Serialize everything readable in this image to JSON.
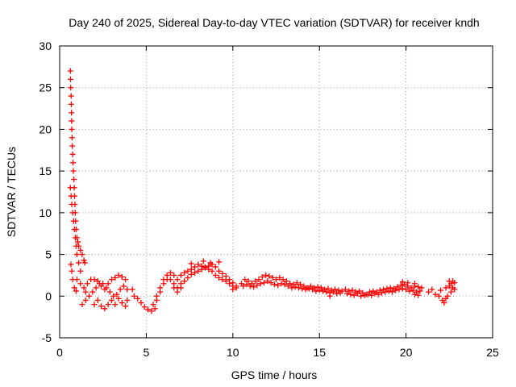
{
  "chart_data": {
    "type": "scatter",
    "title": "Day 240 of 2025, Sidereal Day-to-day VTEC variation (SDTVAR) for receiver kndh",
    "xlabel": "GPS time / hours",
    "ylabel": "SDTVAR / TECUs",
    "xlim": [
      0,
      25
    ],
    "ylim": [
      -5,
      30
    ],
    "xticks": [
      0,
      5,
      10,
      15,
      20,
      25
    ],
    "yticks": [
      -5,
      0,
      5,
      10,
      15,
      20,
      25,
      30
    ],
    "grid": true,
    "marker": "+",
    "series": [
      {
        "name": "SDTVAR",
        "color": "#ff0000",
        "points": [
          [
            0.62,
            27.0
          ],
          [
            0.63,
            26.0
          ],
          [
            0.64,
            25.0
          ],
          [
            0.66,
            24.0
          ],
          [
            0.67,
            23.0
          ],
          [
            0.68,
            22.0
          ],
          [
            0.69,
            21.0
          ],
          [
            0.7,
            20.0
          ],
          [
            0.72,
            19.0
          ],
          [
            0.73,
            18.0
          ],
          [
            0.75,
            17.0
          ],
          [
            0.77,
            16.0
          ],
          [
            0.79,
            15.0
          ],
          [
            0.82,
            14.0
          ],
          [
            0.84,
            13.0
          ],
          [
            0.86,
            12.0
          ],
          [
            0.88,
            11.0
          ],
          [
            0.9,
            10.0
          ],
          [
            0.92,
            9.0
          ],
          [
            0.95,
            8.0
          ],
          [
            1.0,
            7.0
          ],
          [
            1.05,
            6.5
          ],
          [
            1.1,
            6.0
          ],
          [
            1.2,
            5.5
          ],
          [
            1.3,
            5.0
          ],
          [
            1.4,
            4.3
          ],
          [
            1.45,
            4.0
          ],
          [
            0.62,
            13.0
          ],
          [
            0.66,
            12.0
          ],
          [
            0.7,
            11.0
          ],
          [
            0.75,
            10.0
          ],
          [
            0.8,
            9.0
          ],
          [
            0.85,
            8.0
          ],
          [
            0.9,
            7.0
          ],
          [
            0.95,
            6.0
          ],
          [
            1.0,
            5.0
          ],
          [
            1.1,
            4.0
          ],
          [
            1.2,
            3.0
          ],
          [
            0.65,
            3.8
          ],
          [
            0.7,
            3.0
          ],
          [
            0.75,
            2.0
          ],
          [
            0.85,
            1.0
          ],
          [
            0.95,
            0.6
          ],
          [
            1.0,
            2.0
          ],
          [
            1.2,
            1.5
          ],
          [
            1.4,
            1.0
          ],
          [
            1.5,
            0.5
          ],
          [
            1.3,
            -1.0
          ],
          [
            1.5,
            -0.5
          ],
          [
            1.7,
            0.0
          ],
          [
            1.9,
            0.5
          ],
          [
            2.1,
            1.0
          ],
          [
            2.3,
            1.5
          ],
          [
            2.5,
            1.5
          ],
          [
            2.7,
            1.0
          ],
          [
            2.9,
            0.5
          ],
          [
            3.1,
            0.0
          ],
          [
            3.3,
            0.2
          ],
          [
            3.5,
            0.8
          ],
          [
            3.7,
            1.2
          ],
          [
            3.9,
            0.8
          ],
          [
            1.6,
            1.5
          ],
          [
            1.8,
            2.0
          ],
          [
            2.0,
            2.0
          ],
          [
            2.2,
            1.8
          ],
          [
            2.4,
            1.2
          ],
          [
            2.6,
            0.8
          ],
          [
            2.8,
            1.5
          ],
          [
            3.0,
            2.0
          ],
          [
            3.2,
            2.2
          ],
          [
            3.4,
            2.5
          ],
          [
            3.6,
            2.3
          ],
          [
            3.8,
            2.0
          ],
          [
            2.0,
            -1.0
          ],
          [
            2.2,
            -0.5
          ],
          [
            2.4,
            -1.2
          ],
          [
            2.6,
            -1.5
          ],
          [
            2.8,
            -1.0
          ],
          [
            3.0,
            -0.5
          ],
          [
            3.2,
            -1.0
          ],
          [
            3.4,
            -0.3
          ],
          [
            3.6,
            -0.8
          ],
          [
            3.8,
            -1.2
          ],
          [
            3.9,
            -0.5
          ],
          [
            4.2,
            0.8
          ],
          [
            4.3,
            0.0
          ],
          [
            4.5,
            -0.3
          ],
          [
            4.7,
            -0.8
          ],
          [
            4.9,
            -1.3
          ],
          [
            5.1,
            -1.6
          ],
          [
            5.3,
            -1.8
          ],
          [
            5.5,
            -1.5
          ],
          [
            5.6,
            -0.5
          ],
          [
            5.8,
            0.5
          ],
          [
            6.0,
            1.5
          ],
          [
            6.2,
            2.0
          ],
          [
            6.4,
            2.0
          ],
          [
            6.6,
            1.5
          ],
          [
            6.8,
            1.0
          ],
          [
            7.0,
            1.5
          ],
          [
            5.4,
            -1.0
          ],
          [
            5.6,
            0.0
          ],
          [
            5.8,
            1.0
          ],
          [
            6.0,
            2.0
          ],
          [
            6.2,
            2.5
          ],
          [
            6.4,
            2.8
          ],
          [
            6.6,
            2.5
          ],
          [
            6.8,
            2.0
          ],
          [
            7.0,
            2.5
          ],
          [
            7.2,
            2.8
          ],
          [
            7.4,
            3.0
          ],
          [
            7.6,
            3.2
          ],
          [
            7.8,
            3.5
          ],
          [
            8.0,
            3.8
          ],
          [
            8.2,
            3.6
          ],
          [
            8.4,
            3.4
          ],
          [
            8.6,
            3.6
          ],
          [
            8.8,
            3.8
          ],
          [
            9.0,
            3.5
          ],
          [
            9.2,
            3.0
          ],
          [
            9.4,
            2.7
          ],
          [
            9.6,
            2.4
          ],
          [
            9.8,
            2.0
          ],
          [
            10.0,
            1.6
          ],
          [
            10.2,
            1.2
          ],
          [
            6.6,
            1.0
          ],
          [
            6.8,
            0.5
          ],
          [
            7.0,
            1.0
          ],
          [
            7.2,
            1.8
          ],
          [
            7.4,
            2.2
          ],
          [
            7.6,
            2.6
          ],
          [
            7.8,
            2.8
          ],
          [
            8.0,
            3.0
          ],
          [
            8.2,
            3.2
          ],
          [
            8.4,
            3.5
          ],
          [
            8.6,
            3.2
          ],
          [
            8.8,
            3.0
          ],
          [
            9.0,
            2.5
          ],
          [
            9.2,
            2.2
          ],
          [
            9.4,
            2.0
          ],
          [
            9.6,
            1.8
          ],
          [
            9.8,
            1.5
          ],
          [
            10.0,
            1.2
          ],
          [
            10.2,
            1.0
          ],
          [
            8.3,
            4.2
          ],
          [
            8.7,
            4.0
          ],
          [
            9.2,
            4.1
          ],
          [
            7.6,
            3.9
          ],
          [
            10.0,
            0.8
          ],
          [
            10.5,
            1.5
          ],
          [
            10.7,
            2.0
          ],
          [
            10.9,
            1.8
          ],
          [
            11.1,
            1.5
          ],
          [
            11.3,
            1.8
          ],
          [
            11.5,
            2.0
          ],
          [
            11.7,
            2.3
          ],
          [
            11.9,
            2.5
          ],
          [
            12.1,
            2.4
          ],
          [
            12.3,
            2.2
          ],
          [
            12.5,
            2.0
          ],
          [
            12.7,
            2.2
          ],
          [
            12.9,
            2.0
          ],
          [
            13.1,
            1.8
          ],
          [
            13.3,
            1.5
          ],
          [
            13.5,
            1.4
          ],
          [
            13.7,
            1.6
          ],
          [
            13.9,
            1.4
          ],
          [
            14.1,
            1.2
          ],
          [
            14.3,
            1.0
          ],
          [
            14.5,
            1.2
          ],
          [
            14.7,
            1.0
          ],
          [
            14.9,
            1.1
          ],
          [
            15.1,
            1.0
          ],
          [
            15.3,
            0.8
          ],
          [
            15.5,
            0.9
          ],
          [
            15.7,
            0.7
          ],
          [
            15.9,
            0.8
          ],
          [
            16.1,
            0.7
          ],
          [
            16.3,
            0.6
          ],
          [
            10.6,
            1.2
          ],
          [
            10.8,
            1.4
          ],
          [
            11.0,
            1.2
          ],
          [
            11.2,
            1.1
          ],
          [
            11.4,
            1.3
          ],
          [
            11.6,
            1.5
          ],
          [
            11.8,
            1.6
          ],
          [
            12.0,
            1.8
          ],
          [
            12.2,
            1.6
          ],
          [
            12.4,
            1.4
          ],
          [
            12.6,
            1.3
          ],
          [
            12.8,
            1.5
          ],
          [
            13.0,
            1.4
          ],
          [
            13.2,
            1.2
          ],
          [
            13.4,
            1.0
          ],
          [
            13.6,
            1.1
          ],
          [
            13.8,
            1.0
          ],
          [
            14.0,
            0.9
          ],
          [
            14.2,
            0.8
          ],
          [
            14.4,
            0.9
          ],
          [
            14.6,
            0.8
          ],
          [
            14.8,
            0.6
          ],
          [
            15.0,
            0.7
          ],
          [
            15.2,
            0.6
          ],
          [
            15.4,
            0.5
          ],
          [
            15.6,
            0.4
          ],
          [
            15.8,
            0.5
          ],
          [
            16.0,
            0.3
          ],
          [
            16.2,
            0.4
          ],
          [
            15.6,
            0.0
          ],
          [
            16.5,
            0.8
          ],
          [
            16.7,
            0.6
          ],
          [
            16.9,
            0.7
          ],
          [
            17.1,
            0.5
          ],
          [
            17.3,
            0.6
          ],
          [
            17.5,
            0.4
          ],
          [
            17.7,
            0.2
          ],
          [
            17.9,
            0.5
          ],
          [
            18.1,
            0.6
          ],
          [
            18.3,
            0.5
          ],
          [
            18.5,
            0.7
          ],
          [
            18.7,
            0.8
          ],
          [
            18.9,
            0.9
          ],
          [
            19.1,
            1.0
          ],
          [
            19.3,
            0.9
          ],
          [
            19.5,
            1.1
          ],
          [
            19.7,
            1.3
          ],
          [
            19.9,
            1.4
          ],
          [
            20.1,
            1.2
          ],
          [
            20.3,
            1.0
          ],
          [
            20.5,
            1.2
          ],
          [
            20.7,
            1.1
          ],
          [
            20.9,
            1.0
          ],
          [
            16.6,
            0.3
          ],
          [
            16.8,
            0.2
          ],
          [
            17.0,
            0.1
          ],
          [
            17.2,
            0.3
          ],
          [
            17.4,
            0.0
          ],
          [
            17.6,
            0.1
          ],
          [
            17.8,
            0.2
          ],
          [
            18.0,
            0.1
          ],
          [
            18.2,
            0.3
          ],
          [
            18.4,
            0.2
          ],
          [
            18.6,
            0.4
          ],
          [
            18.8,
            0.5
          ],
          [
            19.0,
            0.6
          ],
          [
            19.2,
            0.5
          ],
          [
            19.4,
            0.7
          ],
          [
            19.6,
            0.8
          ],
          [
            19.8,
            0.9
          ],
          [
            20.0,
            0.8
          ],
          [
            20.2,
            0.6
          ],
          [
            20.4,
            0.7
          ],
          [
            20.6,
            0.5
          ],
          [
            20.8,
            0.6
          ],
          [
            20.5,
            0.2
          ],
          [
            20.7,
            0.1
          ],
          [
            19.8,
            1.7
          ],
          [
            20.1,
            1.6
          ],
          [
            20.5,
            1.5
          ],
          [
            21.3,
            0.5
          ],
          [
            21.5,
            0.8
          ],
          [
            21.7,
            0.2
          ],
          [
            21.9,
            0.0
          ],
          [
            22.1,
            -0.5
          ],
          [
            22.2,
            -0.8
          ],
          [
            22.0,
            0.7
          ],
          [
            22.3,
            1.0
          ],
          [
            22.5,
            1.2
          ],
          [
            22.6,
            1.5
          ],
          [
            22.7,
            1.8
          ],
          [
            22.8,
            1.6
          ],
          [
            22.4,
            0.0
          ],
          [
            22.6,
            0.5
          ],
          [
            22.8,
            0.8
          ],
          [
            22.3,
            -0.3
          ],
          [
            22.5,
            1.8
          ],
          [
            22.7,
            1.0
          ]
        ]
      }
    ]
  }
}
